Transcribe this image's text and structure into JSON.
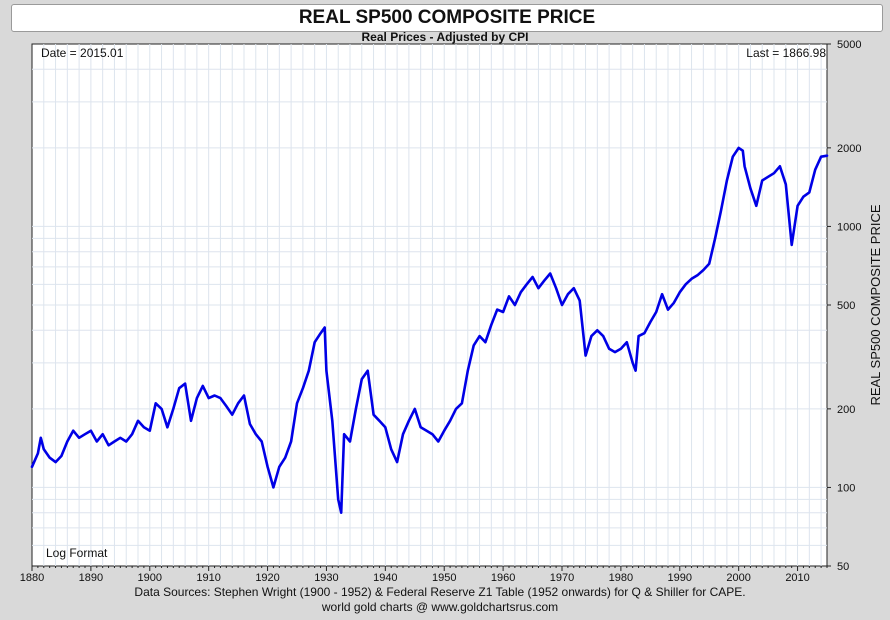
{
  "title": "REAL SP500 COMPOSITE PRICE",
  "subtitle": "Real Prices - Adjusted by CPI",
  "date_label": "Date = 2015.01",
  "last_label": "Last = 1866.98",
  "format_label": "Log Format",
  "source_text": "Data Sources: Stephen Wright (1900 - 1952) & Federal Reserve Z1 Table (1952 onwards) for Q & Shiller for CAPE.",
  "credit_text": "world gold charts @ www.goldchartsrus.com",
  "colors": {
    "series": "#0000e6",
    "grid": "#dde4ee",
    "background": "#d9d9d9",
    "plot": "#ffffff"
  },
  "chart_data": {
    "type": "line",
    "ylabel": "REAL SP500 COMPOSITE PRICE",
    "xlabel": "",
    "yscale": "log",
    "xlim": [
      1880,
      2015
    ],
    "ylim": [
      50,
      5000
    ],
    "x_ticks": [
      "1880",
      "1890",
      "1900",
      "1910",
      "1920",
      "1930",
      "1940",
      "1950",
      "1960",
      "1970",
      "1980",
      "1990",
      "2000",
      "2010"
    ],
    "y_ticks": [
      "5000",
      "2000",
      "1000",
      "500",
      "200",
      "100",
      "50"
    ],
    "grid": true,
    "series": [
      {
        "x": [
          1880,
          1881,
          1881.5,
          1882,
          1883,
          1884,
          1885,
          1886,
          1887,
          1888,
          1889,
          1890,
          1891,
          1892,
          1893,
          1894,
          1895,
          1896,
          1897,
          1898,
          1899,
          1900,
          1901,
          1902,
          1903,
          1904,
          1905,
          1906,
          1907,
          1908,
          1909,
          1910,
          1911,
          1912,
          1913,
          1914,
          1915,
          1916,
          1917,
          1918,
          1919,
          1920,
          1921,
          1922,
          1923,
          1924,
          1925,
          1926,
          1927,
          1928,
          1929,
          1929.7,
          1930,
          1931,
          1932,
          1932.5,
          1933,
          1934,
          1935,
          1936,
          1937,
          1938,
          1939,
          1940,
          1941,
          1942,
          1943,
          1944,
          1945,
          1946,
          1947,
          1948,
          1949,
          1950,
          1951,
          1952,
          1953,
          1954,
          1955,
          1956,
          1957,
          1958,
          1959,
          1960,
          1961,
          1962,
          1963,
          1964,
          1965,
          1966,
          1967,
          1968,
          1969,
          1970,
          1971,
          1972,
          1973,
          1974,
          1975,
          1976,
          1977,
          1978,
          1979,
          1980,
          1981,
          1982,
          1982.5,
          1983,
          1984,
          1985,
          1986,
          1987,
          1988,
          1989,
          1990,
          1991,
          1992,
          1993,
          1994,
          1995,
          1996,
          1997,
          1998,
          1999,
          2000,
          2000.7,
          2001,
          2002,
          2003,
          2004,
          2005,
          2006,
          2007,
          2008,
          2009,
          2010,
          2011,
          2012,
          2013,
          2014,
          2015
        ],
        "values": [
          120,
          135,
          155,
          140,
          130,
          125,
          132,
          150,
          165,
          155,
          160,
          165,
          150,
          160,
          145,
          150,
          155,
          150,
          160,
          180,
          170,
          165,
          210,
          200,
          170,
          200,
          240,
          250,
          180,
          220,
          245,
          220,
          225,
          220,
          205,
          190,
          210,
          225,
          175,
          160,
          150,
          120,
          100,
          120,
          130,
          150,
          210,
          240,
          280,
          360,
          390,
          410,
          280,
          180,
          90,
          80,
          160,
          150,
          200,
          260,
          280,
          190,
          180,
          170,
          140,
          125,
          160,
          180,
          200,
          170,
          165,
          160,
          150,
          165,
          180,
          200,
          210,
          280,
          350,
          380,
          360,
          420,
          480,
          470,
          540,
          500,
          560,
          600,
          640,
          580,
          620,
          660,
          580,
          500,
          550,
          580,
          520,
          320,
          380,
          400,
          380,
          340,
          330,
          340,
          360,
          300,
          280,
          380,
          390,
          430,
          470,
          550,
          480,
          510,
          560,
          600,
          630,
          650,
          680,
          720,
          900,
          1150,
          1500,
          1850,
          2000,
          1950,
          1700,
          1400,
          1200,
          1500,
          1550,
          1600,
          1700,
          1450,
          850,
          1200,
          1300,
          1350,
          1650,
          1850,
          1866.98
        ]
      }
    ]
  }
}
